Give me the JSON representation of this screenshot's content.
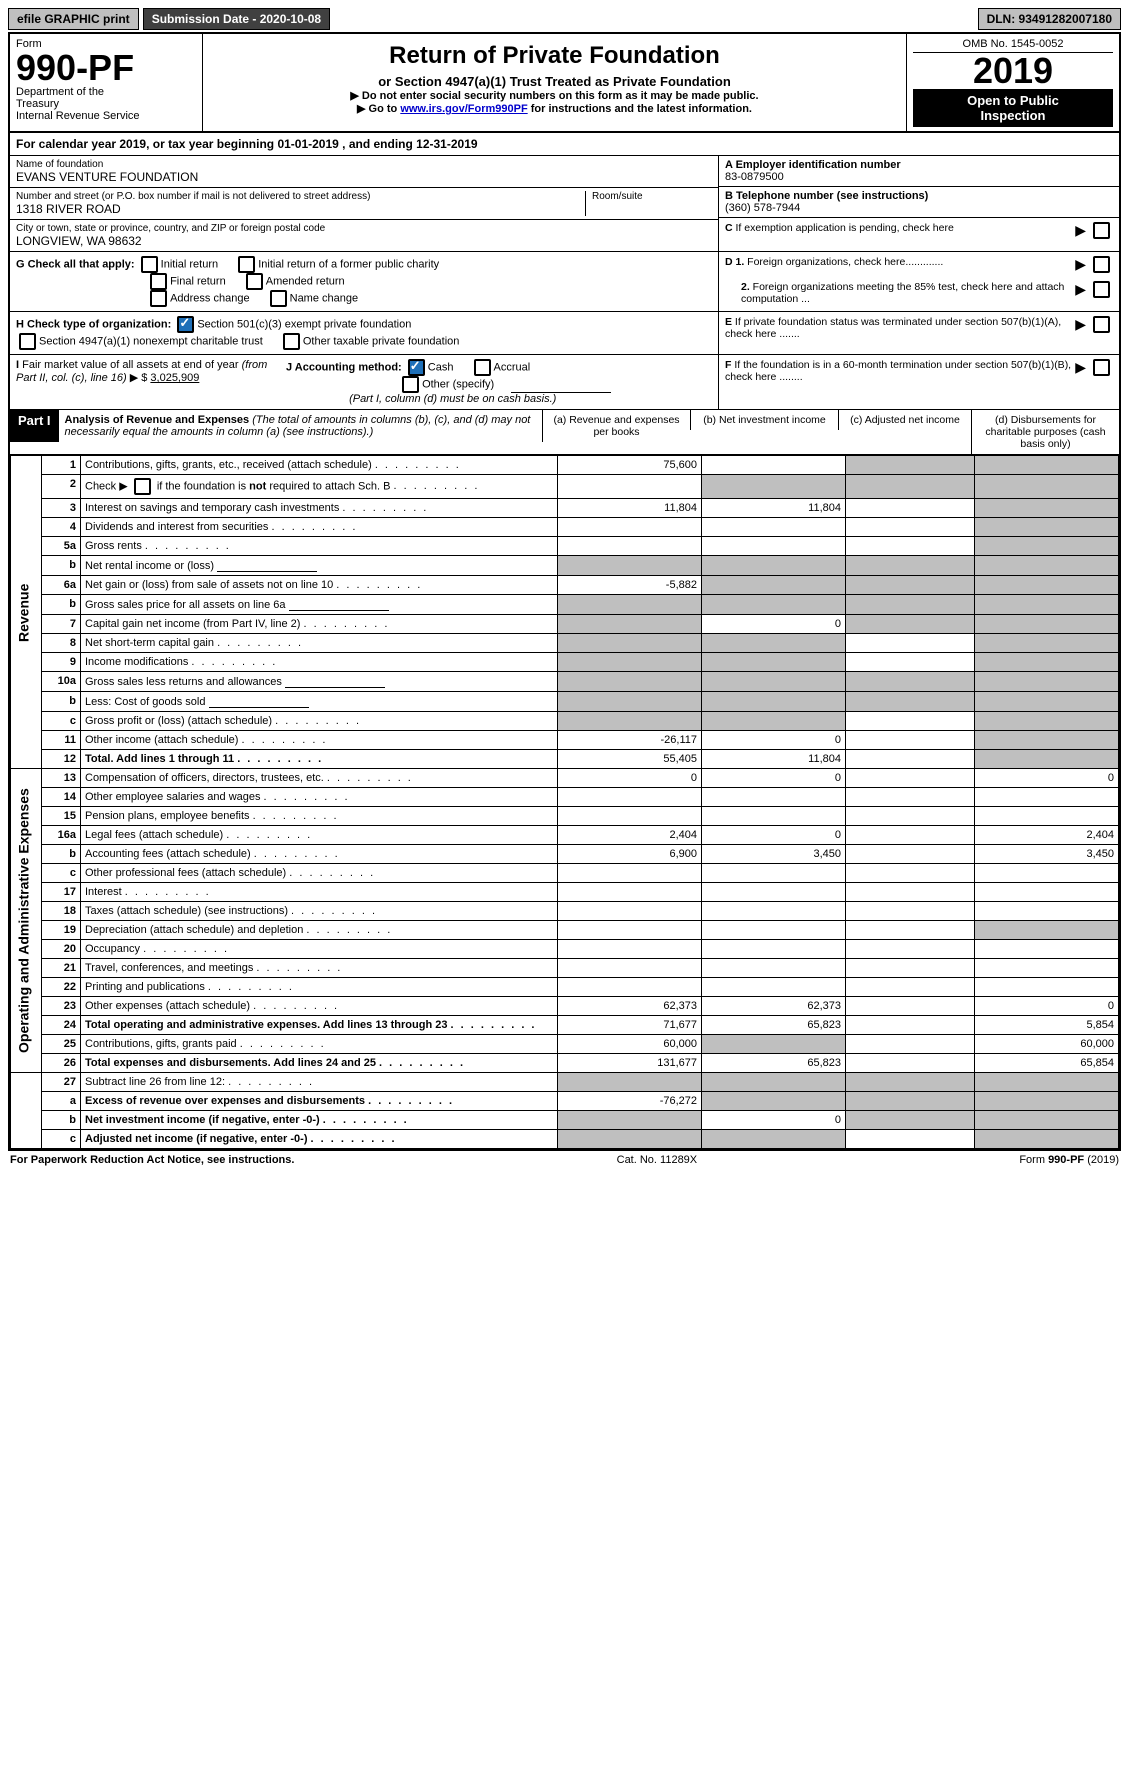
{
  "topbar": {
    "efile": "efile GRAPHIC print",
    "submission": "Submission Date - 2020-10-08",
    "dln": "DLN: 93491282007180"
  },
  "header": {
    "form_label": "Form",
    "form_no": "990-PF",
    "dept": "Department of the Treasury\nInternal Revenue Service",
    "title": "Return of Private Foundation",
    "subtitle": "or Section 4947(a)(1) Trust Treated as Private Foundation",
    "instr1": "▶ Do not enter social security numbers on this form as it may be made public.",
    "instr2_pre": "▶ Go to ",
    "instr2_link": "www.irs.gov/Form990PF",
    "instr2_post": " for instructions and the latest information.",
    "omb": "OMB No. 1545-0052",
    "year": "2019",
    "open": "Open to Public Inspection"
  },
  "cal_year": "For calendar year 2019, or tax year beginning 01-01-2019                , and ending 12-31-2019",
  "foundation": {
    "name_label": "Name of foundation",
    "name": "EVANS VENTURE FOUNDATION",
    "addr_label": "Number and street (or P.O. box number if mail is not delivered to street address)",
    "addr": "1318 RIVER ROAD",
    "room_label": "Room/suite",
    "room": "",
    "city_label": "City or town, state or province, country, and ZIP or foreign postal code",
    "city": "LONGVIEW, WA  98632",
    "ein_label": "A Employer identification number",
    "ein": "83-0879500",
    "phone_label": "B Telephone number (see instructions)",
    "phone": "(360) 578-7944"
  },
  "checks": {
    "c_label": "C If exemption application is pending, check here",
    "d1_label": "D 1. Foreign organizations, check here.............",
    "d2_label": "2. Foreign organizations meeting the 85% test, check here and attach computation ...",
    "e_label": "E  If private foundation status was terminated under section 507(b)(1)(A), check here .......",
    "f_label": "F  If the foundation is in a 60-month termination under section 507(b)(1)(B), check here ........",
    "g_label": "G Check all that apply:",
    "g_initial": "Initial return",
    "g_initial_former": "Initial return of a former public charity",
    "g_final": "Final return",
    "g_amended": "Amended return",
    "g_addr": "Address change",
    "g_name": "Name change",
    "h_label": "H Check type of organization:",
    "h_501c3": "Section 501(c)(3) exempt private foundation",
    "h_4947": "Section 4947(a)(1) nonexempt charitable trust",
    "h_other": "Other taxable private foundation",
    "i_label": "I Fair market value of all assets at end of year (from Part II, col. (c), line 16) ▶ $",
    "i_value": "3,025,909",
    "j_label": "J Accounting method:",
    "j_cash": "Cash",
    "j_accrual": "Accrual",
    "j_other": "Other (specify)",
    "j_note": "(Part I, column (d) must be on cash basis.)"
  },
  "part1": {
    "header": "Part I",
    "title": "Analysis of Revenue and Expenses ",
    "title_note": "(The total of amounts in columns (b), (c), and (d) may not necessarily equal the amounts in column (a) (see instructions).)",
    "col_a": "(a)    Revenue and expenses per books",
    "col_b": "(b)   Net investment income",
    "col_c": "(c)   Adjusted net income",
    "col_d": "(d)   Disbursements for charitable purposes (cash basis only)"
  },
  "sections": {
    "revenue": "Revenue",
    "expenses": "Operating and Administrative Expenses"
  },
  "lines": [
    {
      "n": "1",
      "desc": "Contributions, gifts, grants, etc., received (attach schedule)",
      "a": "75,600",
      "b": "",
      "c": "s",
      "d": "s"
    },
    {
      "n": "2",
      "desc": "Check ▶ if the foundation is not required to attach Sch. B",
      "a": "",
      "b": "s",
      "c": "s",
      "d": "s",
      "hasCheck": true
    },
    {
      "n": "3",
      "desc": "Interest on savings and temporary cash investments",
      "a": "11,804",
      "b": "11,804",
      "c": "",
      "d": "s"
    },
    {
      "n": "4",
      "desc": "Dividends and interest from securities",
      "a": "",
      "b": "",
      "c": "",
      "d": "s"
    },
    {
      "n": "5a",
      "desc": "Gross rents",
      "a": "",
      "b": "",
      "c": "",
      "d": "s"
    },
    {
      "n": "b",
      "desc": "Net rental income or (loss)",
      "a": "s",
      "b": "s",
      "c": "s",
      "d": "s",
      "hasBlank": true
    },
    {
      "n": "6a",
      "desc": "Net gain or (loss) from sale of assets not on line 10",
      "a": "-5,882",
      "b": "s",
      "c": "s",
      "d": "s"
    },
    {
      "n": "b",
      "desc": "Gross sales price for all assets on line 6a",
      "a": "s",
      "b": "s",
      "c": "s",
      "d": "s",
      "hasBlank": true
    },
    {
      "n": "7",
      "desc": "Capital gain net income (from Part IV, line 2)",
      "a": "s",
      "b": "0",
      "c": "s",
      "d": "s"
    },
    {
      "n": "8",
      "desc": "Net short-term capital gain",
      "a": "s",
      "b": "s",
      "c": "",
      "d": "s"
    },
    {
      "n": "9",
      "desc": "Income modifications",
      "a": "s",
      "b": "s",
      "c": "",
      "d": "s"
    },
    {
      "n": "10a",
      "desc": "Gross sales less returns and allowances",
      "a": "s",
      "b": "s",
      "c": "s",
      "d": "s",
      "hasBlank": true
    },
    {
      "n": "b",
      "desc": "Less: Cost of goods sold",
      "a": "s",
      "b": "s",
      "c": "s",
      "d": "s",
      "hasBlank": true
    },
    {
      "n": "c",
      "desc": "Gross profit or (loss) (attach schedule)",
      "a": "s",
      "b": "s",
      "c": "",
      "d": "s"
    },
    {
      "n": "11",
      "desc": "Other income (attach schedule)",
      "a": "-26,117",
      "b": "0",
      "c": "",
      "d": "s"
    },
    {
      "n": "12",
      "desc": "Total. Add lines 1 through 11",
      "a": "55,405",
      "b": "11,804",
      "c": "",
      "d": "s",
      "bold": true
    },
    {
      "n": "13",
      "desc": "Compensation of officers, directors, trustees, etc.",
      "a": "0",
      "b": "0",
      "c": "",
      "d": "0",
      "sec": "exp"
    },
    {
      "n": "14",
      "desc": "Other employee salaries and wages",
      "a": "",
      "b": "",
      "c": "",
      "d": "",
      "sec": "exp"
    },
    {
      "n": "15",
      "desc": "Pension plans, employee benefits",
      "a": "",
      "b": "",
      "c": "",
      "d": "",
      "sec": "exp"
    },
    {
      "n": "16a",
      "desc": "Legal fees (attach schedule)",
      "a": "2,404",
      "b": "0",
      "c": "",
      "d": "2,404",
      "sec": "exp"
    },
    {
      "n": "b",
      "desc": "Accounting fees (attach schedule)",
      "a": "6,900",
      "b": "3,450",
      "c": "",
      "d": "3,450",
      "sec": "exp"
    },
    {
      "n": "c",
      "desc": "Other professional fees (attach schedule)",
      "a": "",
      "b": "",
      "c": "",
      "d": "",
      "sec": "exp"
    },
    {
      "n": "17",
      "desc": "Interest",
      "a": "",
      "b": "",
      "c": "",
      "d": "",
      "sec": "exp"
    },
    {
      "n": "18",
      "desc": "Taxes (attach schedule) (see instructions)",
      "a": "",
      "b": "",
      "c": "",
      "d": "",
      "sec": "exp"
    },
    {
      "n": "19",
      "desc": "Depreciation (attach schedule) and depletion",
      "a": "",
      "b": "",
      "c": "",
      "d": "s",
      "sec": "exp"
    },
    {
      "n": "20",
      "desc": "Occupancy",
      "a": "",
      "b": "",
      "c": "",
      "d": "",
      "sec": "exp"
    },
    {
      "n": "21",
      "desc": "Travel, conferences, and meetings",
      "a": "",
      "b": "",
      "c": "",
      "d": "",
      "sec": "exp"
    },
    {
      "n": "22",
      "desc": "Printing and publications",
      "a": "",
      "b": "",
      "c": "",
      "d": "",
      "sec": "exp"
    },
    {
      "n": "23",
      "desc": "Other expenses (attach schedule)",
      "a": "62,373",
      "b": "62,373",
      "c": "",
      "d": "0",
      "sec": "exp"
    },
    {
      "n": "24",
      "desc": "Total operating and administrative expenses. Add lines 13 through 23",
      "a": "71,677",
      "b": "65,823",
      "c": "",
      "d": "5,854",
      "sec": "exp",
      "bold": true
    },
    {
      "n": "25",
      "desc": "Contributions, gifts, grants paid",
      "a": "60,000",
      "b": "s",
      "c": "",
      "d": "60,000",
      "sec": "exp"
    },
    {
      "n": "26",
      "desc": "Total expenses and disbursements. Add lines 24 and 25",
      "a": "131,677",
      "b": "65,823",
      "c": "",
      "d": "65,854",
      "sec": "exp",
      "bold": true
    },
    {
      "n": "27",
      "desc": "Subtract line 26 from line 12:",
      "a": "s",
      "b": "s",
      "c": "s",
      "d": "s",
      "sec": "end"
    },
    {
      "n": "a",
      "desc": "Excess of revenue over expenses and disbursements",
      "a": "-76,272",
      "b": "s",
      "c": "s",
      "d": "s",
      "sec": "end",
      "bold": true
    },
    {
      "n": "b",
      "desc": "Net investment income (if negative, enter -0-)",
      "a": "s",
      "b": "0",
      "c": "s",
      "d": "s",
      "sec": "end",
      "bold": true
    },
    {
      "n": "c",
      "desc": "Adjusted net income (if negative, enter -0-)",
      "a": "s",
      "b": "s",
      "c": "",
      "d": "s",
      "sec": "end",
      "bold": true
    }
  ],
  "footer": {
    "left": "For Paperwork Reduction Act Notice, see instructions.",
    "center": "Cat. No. 11289X",
    "right": "Form 990-PF (2019)"
  }
}
